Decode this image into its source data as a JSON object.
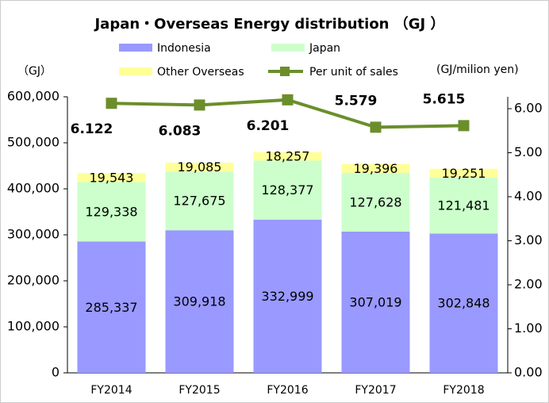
{
  "chart_data": {
    "type": "bar",
    "stacked": true,
    "title": "Japan・Overseas Energy distribution （GJ ）",
    "y_label": "（GJ）",
    "y2_label": "(GJ/milion yen)",
    "categories": [
      "FY2014",
      "FY2015",
      "FY2016",
      "FY2017",
      "FY2018"
    ],
    "series": [
      {
        "name": "Indonesia",
        "color": "#9999ff",
        "values": [
          285337,
          309918,
          332999,
          307019,
          302848
        ],
        "value_labels": [
          "285,337",
          "309,918",
          "332,999",
          "307,019",
          "302,848"
        ]
      },
      {
        "name": "Japan",
        "color": "#ccffcc",
        "values": [
          129338,
          127675,
          128377,
          127628,
          121481
        ],
        "value_labels": [
          "129,338",
          "127,675",
          "128,377",
          "127,628",
          "121,481"
        ]
      },
      {
        "name": "Other Overseas",
        "color": "#ffff99",
        "values": [
          19543,
          19085,
          18257,
          19396,
          19251
        ],
        "value_labels": [
          "19,543",
          "19,085",
          "18,257",
          "19,396",
          "19,251"
        ]
      },
      {
        "name": "Per unit of sales",
        "type": "line",
        "axis": "y2",
        "color": "#6b8e2b",
        "values": [
          6.122,
          6.083,
          6.201,
          5.579,
          5.615
        ]
      }
    ],
    "ylim": [
      0,
      600000
    ],
    "yticks": [
      0,
      {
        "value": 100000,
        "label": "100,000"
      },
      {
        "value": 200000,
        "label": "200,000"
      },
      {
        "value": 300000,
        "label": "300,000"
      },
      {
        "value": 400000,
        "label": "400,000"
      },
      {
        "value": 500000,
        "label": "500,000"
      },
      {
        "value": 600000,
        "label": "600,000"
      }
    ],
    "y2lim": [
      0,
      6.27
    ],
    "y2ticks": [
      {
        "value": 0,
        "label": "0.00"
      },
      {
        "value": 1,
        "label": "1.00"
      },
      {
        "value": 2,
        "label": "2.00"
      },
      {
        "value": 3,
        "label": "3.00"
      },
      {
        "value": 4,
        "label": "4.00"
      },
      {
        "value": 5,
        "label": "5.00"
      },
      {
        "value": 6,
        "label": "6.00"
      }
    ],
    "grid": false
  }
}
